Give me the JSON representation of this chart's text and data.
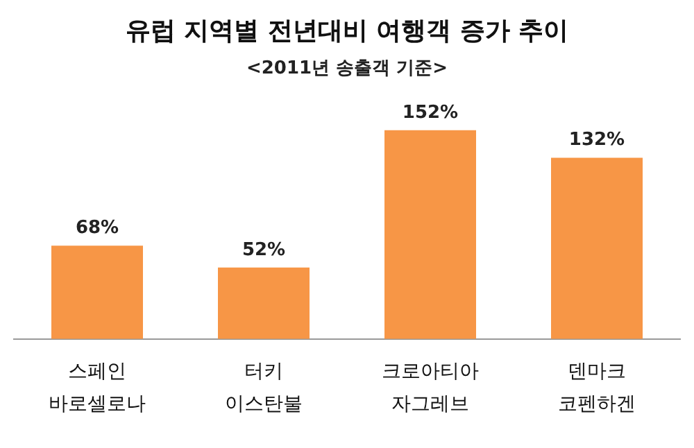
{
  "chart_data": {
    "type": "bar",
    "title": "유럽 지역별 전년대비 여행객 증가 추이",
    "subtitle": "<2011년 송출객 기준>",
    "categories": [
      "스페인\n바로셀로나",
      "터키\n이스탄불",
      "크로아티아\n자그레브",
      "덴마크\n코펜하겐"
    ],
    "values": [
      68,
      52,
      152,
      132
    ],
    "color": "#f79646",
    "value_labels": [
      "68%",
      "52%",
      "152%",
      "132%"
    ],
    "grid": false,
    "legend": false
  }
}
